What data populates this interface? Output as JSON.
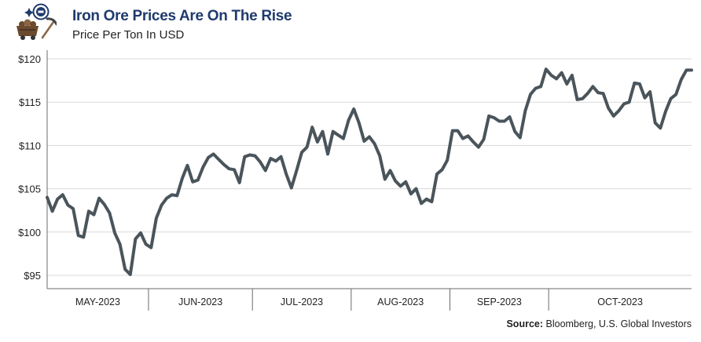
{
  "header": {
    "title": "Iron Ore Prices Are On The Rise",
    "subtitle": "Price Per Ton In USD"
  },
  "footer": {
    "source_label": "Source:",
    "source_text": "Bloomberg, U.S. Global Investors"
  },
  "colors": {
    "line": "#4a545b",
    "title": "#1f3a6e",
    "grid": "#d9d9d9",
    "axis": "#6b6b6b",
    "logo_accent": "#1f3a6e",
    "logo_cart": "#6b4a2e"
  },
  "icons": [
    "iron-ore-badge-icon",
    "mine-cart-icon",
    "pickaxe-icon"
  ],
  "chart_data": {
    "type": "line",
    "grid": true,
    "legend": "none",
    "ylim": [
      94,
      121
    ],
    "yticks": [
      95,
      100,
      105,
      110,
      115,
      120
    ],
    "ytick_labels": [
      "$95",
      "$100",
      "$105",
      "$110",
      "$115",
      "$120"
    ],
    "xlim": [
      0,
      116
    ],
    "month_labels": [
      "MAY-2023",
      "JUN-2023",
      "JUL-2023",
      "AUG-2023",
      "SEP-2023",
      "OCT-2023"
    ],
    "month_boundaries": [
      19.5,
      39.5,
      58.5,
      77.5,
      96.5
    ],
    "series": [
      {
        "values": [
          104.0,
          102.4,
          103.8,
          104.3,
          103.1,
          102.7,
          99.6,
          99.4,
          102.4,
          102.0,
          103.9,
          103.2,
          102.2,
          99.9,
          98.6,
          95.7,
          95.1,
          99.2,
          99.9,
          98.6,
          98.2,
          101.6,
          103.1,
          103.9,
          104.3,
          104.2,
          106.2,
          107.7,
          105.8,
          106.0,
          107.5,
          108.6,
          109.0,
          108.4,
          107.8,
          107.3,
          107.2,
          105.7,
          108.7,
          108.9,
          108.8,
          108.1,
          107.1,
          108.5,
          108.2,
          108.7,
          106.7,
          105.1,
          107.1,
          109.2,
          109.8,
          112.1,
          110.4,
          111.6,
          109.0,
          111.6,
          111.2,
          110.8,
          112.9,
          114.2,
          112.6,
          110.5,
          111.0,
          110.2,
          108.8,
          106.1,
          107.1,
          105.9,
          105.3,
          105.8,
          104.4,
          105.0,
          103.3,
          103.8,
          103.5,
          106.7,
          107.2,
          108.3,
          111.7,
          111.7,
          110.8,
          111.1,
          110.4,
          109.8,
          110.7,
          113.4,
          113.2,
          112.8,
          112.8,
          113.3,
          111.6,
          110.9,
          114.0,
          115.9,
          116.6,
          116.8,
          118.8,
          118.1,
          117.7,
          118.4,
          117.1,
          118.1,
          115.3,
          115.4,
          116.0,
          116.8,
          116.1,
          116.0,
          114.3,
          113.4,
          114.0,
          114.8,
          115.0,
          117.2,
          117.1,
          115.5,
          116.2,
          112.6,
          112.0,
          113.9,
          115.4,
          115.9,
          117.6,
          118.7,
          118.7
        ]
      }
    ]
  }
}
